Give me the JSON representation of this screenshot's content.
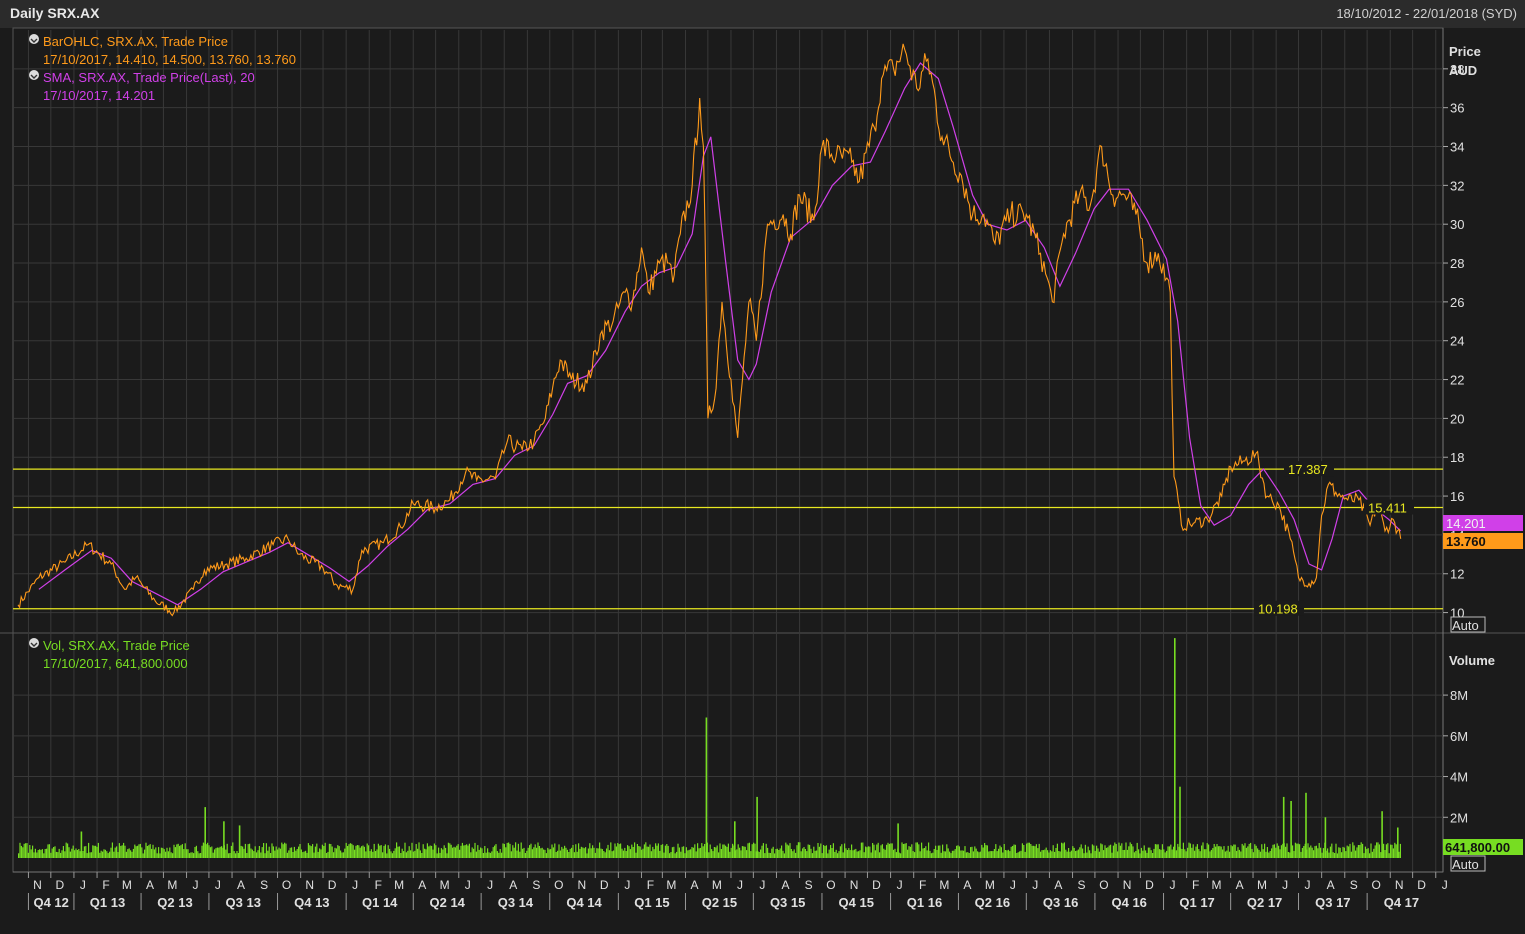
{
  "header": {
    "title": "Daily SRX.AX",
    "date_range": "18/10/2012 - 22/01/2018 (SYD)"
  },
  "colors": {
    "price": "#ff9a1a",
    "sma": "#d040e8",
    "volume": "#77dd22",
    "hline": "#e8e820",
    "grid": "#383838",
    "background": "#1b1b1b"
  },
  "legend": {
    "bar": {
      "title": "BarOHLC, SRX.AX, Trade Price",
      "values": "17/10/2017, 14.410, 14.500, 13.760, 13.760"
    },
    "sma": {
      "title": "SMA, SRX.AX, Trade Price(Last),  20",
      "values": "17/10/2017, 14.201"
    },
    "vol": {
      "title": "Vol, SRX.AX, Trade Price",
      "values": "17/10/2017, 641,800.000"
    }
  },
  "price_axis": {
    "title1": "Price",
    "title2": "AUD",
    "auto": "Auto"
  },
  "volume_axis": {
    "title": "Volume",
    "auto": "Auto"
  },
  "tags": {
    "sma_last": "14.201",
    "price_last": "13.760",
    "vol_last": "641,800.00"
  },
  "chart_data": [
    {
      "type": "line",
      "name": "price",
      "ylim": [
        9,
        40
      ],
      "yticks": [
        10,
        12,
        14,
        16,
        18,
        20,
        22,
        24,
        26,
        28,
        30,
        32,
        34,
        36,
        38
      ],
      "x_domain": [
        "2012-10-18",
        "2017-12-31"
      ],
      "months": [
        "N",
        "D",
        "J",
        "F",
        "M",
        "A",
        "M",
        "J",
        "J",
        "A",
        "S",
        "O",
        "N",
        "D",
        "J",
        "F",
        "M",
        "A",
        "M",
        "J",
        "J",
        "A",
        "S",
        "O",
        "N",
        "D",
        "J",
        "F",
        "M",
        "A",
        "M",
        "J",
        "J",
        "A",
        "S",
        "O",
        "N",
        "D",
        "J",
        "F",
        "M",
        "A",
        "M",
        "J",
        "J",
        "A",
        "S",
        "O",
        "N",
        "D",
        "J",
        "F",
        "M",
        "A",
        "M",
        "J",
        "J",
        "A",
        "S",
        "O",
        "N",
        "D",
        "J"
      ],
      "quarters": [
        "Q4 12",
        "Q1 13",
        "Q2 13",
        "Q3 13",
        "Q4 13",
        "Q1 14",
        "Q2 14",
        "Q3 14",
        "Q4 14",
        "Q1 15",
        "Q2 15",
        "Q3 15",
        "Q4 15",
        "Q1 16",
        "Q2 16",
        "Q3 16",
        "Q4 16",
        "Q1 17",
        "Q2 17",
        "Q3 17",
        "Q4 17"
      ],
      "horizontal_lines": [
        {
          "value": 17.387,
          "label": "17.387"
        },
        {
          "value": 15.411,
          "label": "15.411"
        },
        {
          "value": 10.198,
          "label": "10.198"
        }
      ],
      "price_points": [
        [
          "2012-10-18",
          10.4
        ],
        [
          "2012-11-15",
          11.8
        ],
        [
          "2012-12-20",
          12.6
        ],
        [
          "2013-01-20",
          13.5
        ],
        [
          "2013-02-20",
          12.5
        ],
        [
          "2013-03-10",
          11.2
        ],
        [
          "2013-03-25",
          11.8
        ],
        [
          "2013-04-20",
          10.6
        ],
        [
          "2013-05-15",
          10.0
        ],
        [
          "2013-06-10",
          11.2
        ],
        [
          "2013-06-25",
          12.2
        ],
        [
          "2013-07-25",
          12.5
        ],
        [
          "2013-08-20",
          12.8
        ],
        [
          "2013-09-25",
          13.5
        ],
        [
          "2013-10-15",
          13.8
        ],
        [
          "2013-10-30",
          13.0
        ],
        [
          "2013-12-01",
          12.3
        ],
        [
          "2013-12-20",
          11.4
        ],
        [
          "2014-01-10",
          11.2
        ],
        [
          "2014-01-22",
          13.2
        ],
        [
          "2014-02-20",
          13.6
        ],
        [
          "2014-03-15",
          14.4
        ],
        [
          "2014-04-01",
          15.6
        ],
        [
          "2014-05-01",
          15.4
        ],
        [
          "2014-05-20",
          15.8
        ],
        [
          "2014-06-10",
          17.2
        ],
        [
          "2014-06-25",
          16.8
        ],
        [
          "2014-07-20",
          16.9
        ],
        [
          "2014-08-05",
          18.8
        ],
        [
          "2014-08-25",
          18.4
        ],
        [
          "2014-09-10",
          18.8
        ],
        [
          "2014-09-25",
          20.0
        ],
        [
          "2014-10-05",
          21.6
        ],
        [
          "2014-10-15",
          23.0
        ],
        [
          "2014-10-30",
          22.0
        ],
        [
          "2014-11-20",
          21.8
        ],
        [
          "2014-12-10",
          24.5
        ],
        [
          "2014-12-25",
          25.0
        ],
        [
          "2015-01-10",
          26.5
        ],
        [
          "2015-01-20",
          26.0
        ],
        [
          "2015-02-01",
          28.8
        ],
        [
          "2015-02-10",
          26.5
        ],
        [
          "2015-02-25",
          28.0
        ],
        [
          "2015-03-10",
          28.0
        ],
        [
          "2015-03-15",
          27.0
        ],
        [
          "2015-03-25",
          29.5
        ],
        [
          "2015-04-10",
          32.0
        ],
        [
          "2015-04-20",
          36.5
        ],
        [
          "2015-04-25",
          34.0
        ],
        [
          "2015-05-01",
          20.0
        ],
        [
          "2015-05-10",
          21.0
        ],
        [
          "2015-05-20",
          26.0
        ],
        [
          "2015-06-01",
          22.0
        ],
        [
          "2015-06-10",
          19.0
        ],
        [
          "2015-06-25",
          26.0
        ],
        [
          "2015-07-05",
          24.0
        ],
        [
          "2015-07-20",
          30.0
        ],
        [
          "2015-08-10",
          30.5
        ],
        [
          "2015-08-20",
          29.5
        ],
        [
          "2015-09-01",
          31.5
        ],
        [
          "2015-09-20",
          30.2
        ],
        [
          "2015-10-01",
          34.0
        ],
        [
          "2015-10-20",
          33.5
        ],
        [
          "2015-11-10",
          33.2
        ],
        [
          "2015-11-20",
          32.2
        ],
        [
          "2015-12-10",
          35.0
        ],
        [
          "2015-12-20",
          37.5
        ],
        [
          "2016-01-05",
          38.0
        ],
        [
          "2016-01-20",
          39.0
        ],
        [
          "2016-02-05",
          37.0
        ],
        [
          "2016-02-20",
          38.5
        ],
        [
          "2016-03-10",
          34.5
        ],
        [
          "2016-04-05",
          32.5
        ],
        [
          "2016-04-20",
          30.5
        ],
        [
          "2016-05-05",
          30.5
        ],
        [
          "2016-05-20",
          29.0
        ],
        [
          "2016-06-10",
          30.5
        ],
        [
          "2016-07-01",
          30.5
        ],
        [
          "2016-07-20",
          28.5
        ],
        [
          "2016-08-05",
          26.0
        ],
        [
          "2016-08-20",
          29.5
        ],
        [
          "2016-09-10",
          31.5
        ],
        [
          "2016-09-25",
          31.0
        ],
        [
          "2016-10-10",
          34.0
        ],
        [
          "2016-10-25",
          31.5
        ],
        [
          "2016-11-10",
          31.5
        ],
        [
          "2016-11-25",
          30.5
        ],
        [
          "2016-12-10",
          28.0
        ],
        [
          "2016-12-25",
          28.5
        ],
        [
          "2017-01-10",
          26.5
        ],
        [
          "2017-01-15",
          17.0
        ],
        [
          "2017-01-25",
          14.5
        ],
        [
          "2017-02-10",
          14.6
        ],
        [
          "2017-03-01",
          14.8
        ],
        [
          "2017-03-20",
          16.0
        ],
        [
          "2017-04-01",
          17.5
        ],
        [
          "2017-04-20",
          17.8
        ],
        [
          "2017-05-05",
          18.2
        ],
        [
          "2017-05-20",
          16.0
        ],
        [
          "2017-06-05",
          15.5
        ],
        [
          "2017-06-20",
          13.8
        ],
        [
          "2017-07-01",
          11.8
        ],
        [
          "2017-07-15",
          11.5
        ],
        [
          "2017-07-25",
          11.8
        ],
        [
          "2017-08-01",
          15.0
        ],
        [
          "2017-08-10",
          16.6
        ],
        [
          "2017-08-20",
          16.2
        ],
        [
          "2017-09-05",
          15.8
        ],
        [
          "2017-09-20",
          15.8
        ],
        [
          "2017-10-05",
          14.5
        ],
        [
          "2017-10-15",
          15.6
        ],
        [
          "2017-10-25",
          14.2
        ],
        [
          "2017-11-05",
          14.8
        ],
        [
          "2017-11-15",
          13.8
        ]
      ],
      "sma_points": [
        [
          "2012-11-15",
          11.2
        ],
        [
          "2012-12-20",
          12.2
        ],
        [
          "2013-01-25",
          13.2
        ],
        [
          "2013-02-20",
          12.8
        ],
        [
          "2013-03-20",
          11.6
        ],
        [
          "2013-04-20",
          11.0
        ],
        [
          "2013-05-20",
          10.4
        ],
        [
          "2013-06-20",
          11.2
        ],
        [
          "2013-07-20",
          12.1
        ],
        [
          "2013-08-20",
          12.6
        ],
        [
          "2013-09-20",
          13.1
        ],
        [
          "2013-10-15",
          13.6
        ],
        [
          "2013-11-10",
          13.0
        ],
        [
          "2013-12-10",
          12.3
        ],
        [
          "2014-01-05",
          11.6
        ],
        [
          "2014-01-30",
          12.4
        ],
        [
          "2014-02-25",
          13.4
        ],
        [
          "2014-03-25",
          14.3
        ],
        [
          "2014-04-20",
          15.3
        ],
        [
          "2014-05-20",
          15.6
        ],
        [
          "2014-06-20",
          16.6
        ],
        [
          "2014-07-20",
          16.9
        ],
        [
          "2014-08-15",
          18.1
        ],
        [
          "2014-09-10",
          18.6
        ],
        [
          "2014-10-05",
          20.2
        ],
        [
          "2014-10-25",
          21.8
        ],
        [
          "2014-11-20",
          22.2
        ],
        [
          "2014-12-15",
          23.5
        ],
        [
          "2015-01-10",
          25.5
        ],
        [
          "2015-02-01",
          26.8
        ],
        [
          "2015-02-25",
          27.5
        ],
        [
          "2015-03-20",
          27.8
        ],
        [
          "2015-04-10",
          29.5
        ],
        [
          "2015-04-25",
          33.5
        ],
        [
          "2015-05-05",
          34.5
        ],
        [
          "2015-05-25",
          28.0
        ],
        [
          "2015-06-10",
          23.0
        ],
        [
          "2015-06-25",
          22.0
        ],
        [
          "2015-07-05",
          22.8
        ],
        [
          "2015-07-25",
          26.5
        ],
        [
          "2015-08-20",
          29.3
        ],
        [
          "2015-09-20",
          30.3
        ],
        [
          "2015-10-15",
          32.0
        ],
        [
          "2015-11-10",
          33.0
        ],
        [
          "2015-12-05",
          33.2
        ],
        [
          "2015-12-25",
          34.8
        ],
        [
          "2016-01-20",
          37.0
        ],
        [
          "2016-02-10",
          38.3
        ],
        [
          "2016-03-05",
          37.5
        ],
        [
          "2016-03-25",
          35.0
        ],
        [
          "2016-04-20",
          31.5
        ],
        [
          "2016-05-10",
          30.0
        ],
        [
          "2016-06-05",
          29.7
        ],
        [
          "2016-06-30",
          30.2
        ],
        [
          "2016-07-25",
          28.8
        ],
        [
          "2016-08-15",
          26.8
        ],
        [
          "2016-09-05",
          28.5
        ],
        [
          "2016-09-30",
          30.8
        ],
        [
          "2016-10-20",
          31.8
        ],
        [
          "2016-11-15",
          31.8
        ],
        [
          "2016-12-10",
          30.2
        ],
        [
          "2017-01-05",
          28.2
        ],
        [
          "2017-01-20",
          25.0
        ],
        [
          "2017-02-05",
          19.0
        ],
        [
          "2017-02-20",
          15.5
        ],
        [
          "2017-03-10",
          14.5
        ],
        [
          "2017-04-01",
          15.0
        ],
        [
          "2017-04-25",
          16.6
        ],
        [
          "2017-05-15",
          17.4
        ],
        [
          "2017-06-05",
          16.2
        ],
        [
          "2017-06-25",
          14.8
        ],
        [
          "2017-07-15",
          12.5
        ],
        [
          "2017-08-01",
          12.2
        ],
        [
          "2017-08-15",
          13.8
        ],
        [
          "2017-08-30",
          16.0
        ],
        [
          "2017-09-20",
          16.3
        ],
        [
          "2017-10-10",
          15.4
        ],
        [
          "2017-10-30",
          14.8
        ],
        [
          "2017-11-15",
          14.2
        ]
      ]
    },
    {
      "type": "bar",
      "name": "volume",
      "ylim": [
        0,
        11000000
      ],
      "yticks": [
        2000000,
        4000000,
        6000000,
        8000000
      ],
      "ytick_labels": [
        "2M",
        "4M",
        "6M",
        "8M"
      ],
      "baseline": 500000,
      "spikes": [
        [
          "2013-06-25",
          2500000
        ],
        [
          "2013-07-20",
          1800000
        ],
        [
          "2013-08-10",
          1600000
        ],
        [
          "2013-01-10",
          1300000
        ],
        [
          "2015-04-28",
          6900000
        ],
        [
          "2015-07-05",
          3000000
        ],
        [
          "2015-06-05",
          1800000
        ],
        [
          "2016-01-10",
          1700000
        ],
        [
          "2017-01-15",
          10800000
        ],
        [
          "2017-01-22",
          3500000
        ],
        [
          "2017-06-10",
          3000000
        ],
        [
          "2017-06-20",
          2800000
        ],
        [
          "2017-07-10",
          3200000
        ],
        [
          "2017-08-05",
          2000000
        ],
        [
          "2017-10-20",
          2300000
        ],
        [
          "2017-11-10",
          1500000
        ]
      ]
    }
  ]
}
